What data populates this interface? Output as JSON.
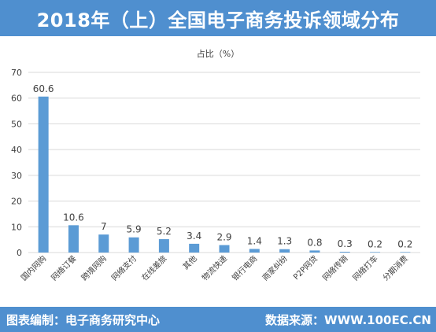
{
  "header": {
    "title": "2018年（上）全国电子商务投诉领域分布"
  },
  "footer": {
    "left_text": "图表编制：电子商务研究中心",
    "right_text": "数据来源：WWW.100EC.CN"
  },
  "colors": {
    "header_bg": "#4f8fcf",
    "bar": "#5b9bd5",
    "grid": "#d9d9d9",
    "text": "#404040"
  },
  "chart_data": {
    "type": "bar",
    "title": "占比（%）",
    "xlabel": "",
    "ylabel": "",
    "ylim": [
      0,
      70
    ],
    "yticks": [
      0,
      10,
      20,
      30,
      40,
      50,
      60,
      70
    ],
    "grid": true,
    "categories": [
      "国内网购",
      "网络订餐",
      "跨境网购",
      "网络支付",
      "在线差旅",
      "其他",
      "物流快递",
      "银行电商",
      "商家纠纷",
      "P2P网贷",
      "网络传销",
      "网络打车",
      "分期消费"
    ],
    "values": [
      60.6,
      10.6,
      7,
      5.9,
      5.2,
      3.4,
      2.9,
      1.4,
      1.3,
      0.8,
      0.3,
      0.2,
      0.2
    ],
    "value_labels": [
      "60.6",
      "10.6",
      "7",
      "5.9",
      "5.2",
      "3.4",
      "2.9",
      "1.4",
      "1.3",
      "0.8",
      "0.3",
      "0.2",
      "0.2"
    ]
  }
}
